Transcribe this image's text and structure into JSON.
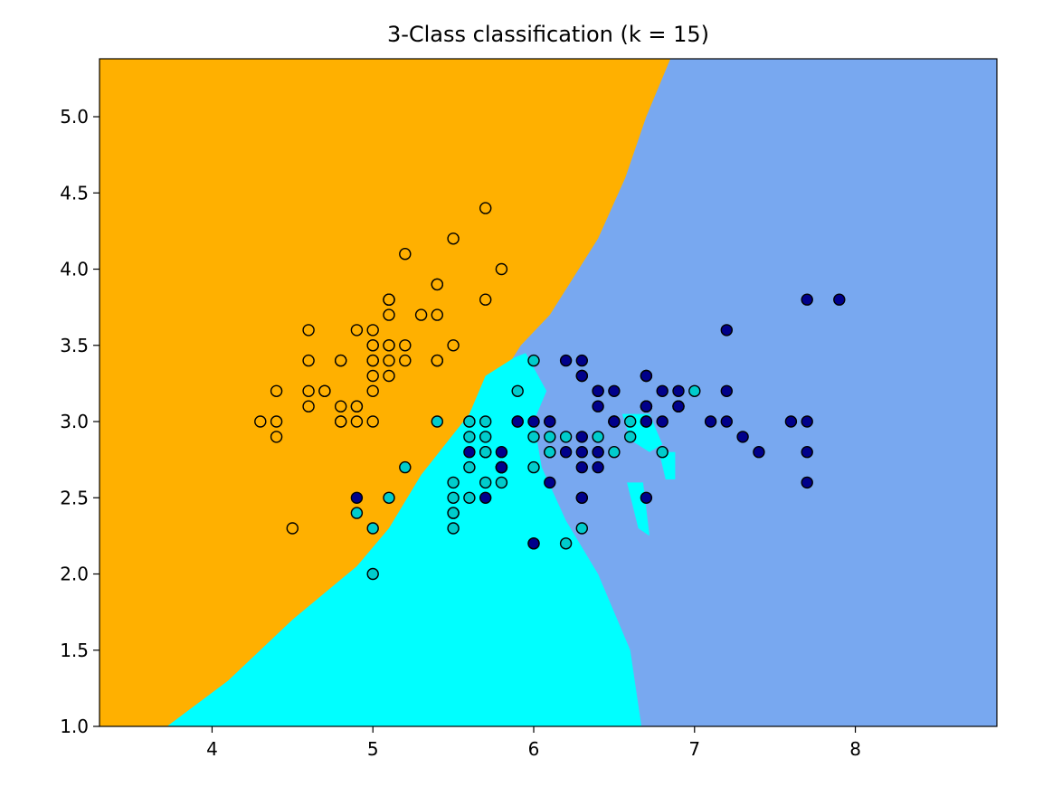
{
  "chart_data": {
    "type": "scatter",
    "title": "3-Class classification (k = 15)",
    "xlabel": "",
    "ylabel": "",
    "xlim": [
      3.3,
      8.88
    ],
    "ylim": [
      1.0,
      5.38
    ],
    "x_ticks": [
      "4",
      "5",
      "6",
      "7",
      "8"
    ],
    "y_ticks": [
      "1.0",
      "1.5",
      "2.0",
      "2.5",
      "3.0",
      "3.5",
      "4.0",
      "4.5",
      "5.0"
    ],
    "grid": false,
    "legend": "none",
    "region_colors": {
      "class0": "#FFB000",
      "class1": "#00FFFF",
      "class2": "#78A8F0"
    },
    "regions": {
      "class0_boundary": [
        [
          3.3,
          1.0
        ],
        [
          3.72,
          1.0
        ],
        [
          4.1,
          1.3
        ],
        [
          4.5,
          1.7
        ],
        [
          4.9,
          2.05
        ],
        [
          5.1,
          2.3
        ],
        [
          5.3,
          2.65
        ],
        [
          5.6,
          3.05
        ],
        [
          5.8,
          3.3
        ],
        [
          5.92,
          3.5
        ],
        [
          6.1,
          3.7
        ],
        [
          6.4,
          4.2
        ],
        [
          6.57,
          4.6
        ],
        [
          6.7,
          5.0
        ],
        [
          6.85,
          5.38
        ],
        [
          3.3,
          5.38
        ]
      ],
      "class1_boundary": [
        [
          3.72,
          1.0
        ],
        [
          6.67,
          1.0
        ],
        [
          6.6,
          1.5
        ],
        [
          6.4,
          2.0
        ],
        [
          6.2,
          2.35
        ],
        [
          6.05,
          2.7
        ],
        [
          6.0,
          3.0
        ],
        [
          6.08,
          3.2
        ],
        [
          5.95,
          3.45
        ],
        [
          5.88,
          3.42
        ],
        [
          5.7,
          3.3
        ],
        [
          5.6,
          3.05
        ],
        [
          5.3,
          2.65
        ],
        [
          5.1,
          2.3
        ],
        [
          4.9,
          2.05
        ],
        [
          4.5,
          1.7
        ],
        [
          4.1,
          1.3
        ]
      ],
      "class1_islands": [
        [
          [
            6.55,
            3.05
          ],
          [
            6.72,
            3.05
          ],
          [
            6.8,
            2.85
          ],
          [
            6.72,
            2.8
          ],
          [
            6.6,
            2.88
          ]
        ],
        [
          [
            6.78,
            2.8
          ],
          [
            6.88,
            2.8
          ],
          [
            6.88,
            2.62
          ],
          [
            6.82,
            2.62
          ]
        ],
        [
          [
            6.58,
            2.6
          ],
          [
            6.68,
            2.6
          ],
          [
            6.72,
            2.25
          ],
          [
            6.65,
            2.3
          ]
        ]
      ]
    },
    "series": [
      {
        "color": "#FFB000",
        "points": [
          [
            5.1,
            3.5
          ],
          [
            4.9,
            3.0
          ],
          [
            4.7,
            3.2
          ],
          [
            4.6,
            3.1
          ],
          [
            5.0,
            3.6
          ],
          [
            5.4,
            3.9
          ],
          [
            4.6,
            3.4
          ],
          [
            5.0,
            3.4
          ],
          [
            4.4,
            2.9
          ],
          [
            4.9,
            3.1
          ],
          [
            5.4,
            3.7
          ],
          [
            4.8,
            3.4
          ],
          [
            4.8,
            3.0
          ],
          [
            4.3,
            3.0
          ],
          [
            5.8,
            4.0
          ],
          [
            5.7,
            4.4
          ],
          [
            5.4,
            3.9
          ],
          [
            5.1,
            3.5
          ],
          [
            5.7,
            3.8
          ],
          [
            5.1,
            3.8
          ],
          [
            5.4,
            3.4
          ],
          [
            5.1,
            3.7
          ],
          [
            4.6,
            3.6
          ],
          [
            5.1,
            3.3
          ],
          [
            4.8,
            3.4
          ],
          [
            5.0,
            3.0
          ],
          [
            5.0,
            3.4
          ],
          [
            5.2,
            3.5
          ],
          [
            5.2,
            3.4
          ],
          [
            4.7,
            3.2
          ],
          [
            4.8,
            3.1
          ],
          [
            5.4,
            3.4
          ],
          [
            5.2,
            4.1
          ],
          [
            5.5,
            4.2
          ],
          [
            4.9,
            3.1
          ],
          [
            5.0,
            3.2
          ],
          [
            5.5,
            3.5
          ],
          [
            4.9,
            3.6
          ],
          [
            4.4,
            3.0
          ],
          [
            5.1,
            3.4
          ],
          [
            5.0,
            3.5
          ],
          [
            4.5,
            2.3
          ],
          [
            4.4,
            3.2
          ],
          [
            5.0,
            3.5
          ],
          [
            5.1,
            3.8
          ],
          [
            4.8,
            3.0
          ],
          [
            5.1,
            3.8
          ],
          [
            4.6,
            3.2
          ],
          [
            5.3,
            3.7
          ],
          [
            5.0,
            3.3
          ]
        ]
      },
      {
        "color": "#00CCCC",
        "points": [
          [
            6.4,
            3.2
          ],
          [
            6.9,
            3.1
          ],
          [
            5.5,
            2.3
          ],
          [
            6.5,
            2.8
          ],
          [
            5.7,
            2.8
          ],
          [
            6.3,
            3.3
          ],
          [
            4.9,
            2.4
          ],
          [
            6.6,
            2.9
          ],
          [
            5.2,
            2.7
          ],
          [
            5.0,
            2.0
          ],
          [
            5.9,
            3.0
          ],
          [
            6.0,
            2.2
          ],
          [
            6.1,
            2.9
          ],
          [
            5.6,
            2.9
          ],
          [
            6.7,
            3.1
          ],
          [
            5.6,
            3.0
          ],
          [
            5.8,
            2.7
          ],
          [
            6.2,
            2.2
          ],
          [
            5.6,
            2.5
          ],
          [
            5.9,
            3.2
          ],
          [
            6.1,
            2.8
          ],
          [
            6.3,
            2.5
          ],
          [
            6.1,
            2.8
          ],
          [
            6.4,
            2.9
          ],
          [
            6.6,
            3.0
          ],
          [
            6.8,
            2.8
          ],
          [
            6.7,
            3.0
          ],
          [
            6.0,
            2.9
          ],
          [
            5.7,
            2.6
          ],
          [
            5.5,
            2.4
          ],
          [
            5.5,
            2.4
          ],
          [
            5.8,
            2.7
          ],
          [
            6.0,
            2.7
          ],
          [
            5.4,
            3.0
          ],
          [
            6.0,
            3.4
          ],
          [
            6.7,
            3.1
          ],
          [
            6.3,
            2.3
          ],
          [
            5.6,
            3.0
          ],
          [
            5.5,
            2.5
          ],
          [
            5.5,
            2.6
          ],
          [
            6.1,
            3.0
          ],
          [
            5.8,
            2.6
          ],
          [
            5.0,
            2.3
          ],
          [
            5.6,
            2.7
          ],
          [
            5.7,
            3.0
          ],
          [
            5.7,
            2.9
          ],
          [
            6.2,
            2.9
          ],
          [
            5.1,
            2.5
          ],
          [
            5.7,
            2.8
          ],
          [
            7.0,
            3.2
          ]
        ]
      },
      {
        "color": "#00008B",
        "points": [
          [
            6.3,
            3.3
          ],
          [
            5.8,
            2.7
          ],
          [
            7.1,
            3.0
          ],
          [
            6.3,
            2.9
          ],
          [
            6.5,
            3.0
          ],
          [
            7.6,
            3.0
          ],
          [
            4.9,
            2.5
          ],
          [
            7.3,
            2.9
          ],
          [
            6.7,
            2.5
          ],
          [
            7.2,
            3.6
          ],
          [
            6.5,
            3.2
          ],
          [
            6.4,
            2.7
          ],
          [
            6.8,
            3.0
          ],
          [
            5.7,
            2.5
          ],
          [
            5.8,
            2.8
          ],
          [
            6.4,
            3.2
          ],
          [
            6.5,
            3.0
          ],
          [
            7.7,
            3.8
          ],
          [
            7.7,
            2.6
          ],
          [
            6.0,
            2.2
          ],
          [
            6.9,
            3.2
          ],
          [
            5.6,
            2.8
          ],
          [
            7.7,
            2.8
          ],
          [
            6.3,
            2.7
          ],
          [
            6.7,
            3.3
          ],
          [
            7.2,
            3.2
          ],
          [
            6.2,
            2.8
          ],
          [
            6.1,
            3.0
          ],
          [
            6.4,
            2.8
          ],
          [
            7.2,
            3.0
          ],
          [
            7.4,
            2.8
          ],
          [
            7.9,
            3.8
          ],
          [
            6.4,
            2.8
          ],
          [
            6.3,
            2.8
          ],
          [
            6.1,
            2.6
          ],
          [
            7.7,
            3.0
          ],
          [
            6.3,
            3.4
          ],
          [
            6.4,
            3.1
          ],
          [
            6.0,
            3.0
          ],
          [
            6.9,
            3.1
          ],
          [
            6.7,
            3.1
          ],
          [
            6.9,
            3.1
          ],
          [
            5.8,
            2.7
          ],
          [
            6.8,
            3.2
          ],
          [
            6.7,
            3.3
          ],
          [
            6.7,
            3.0
          ],
          [
            6.3,
            2.5
          ],
          [
            6.5,
            3.0
          ],
          [
            6.2,
            3.4
          ],
          [
            5.9,
            3.0
          ]
        ]
      }
    ]
  }
}
